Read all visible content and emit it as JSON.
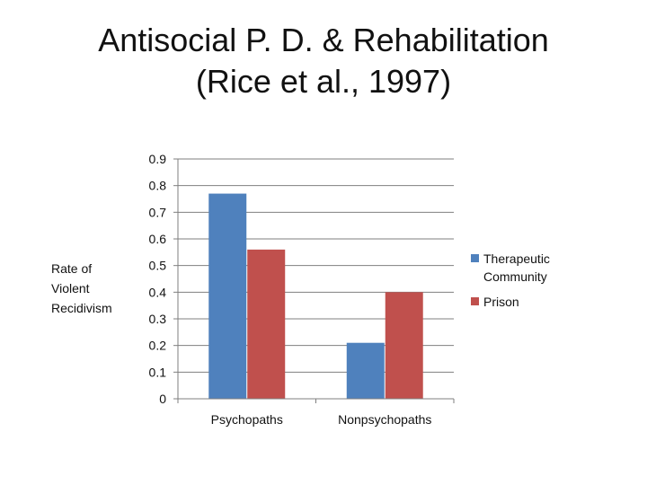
{
  "slide": {
    "title_line1": "Antisocial P. D. & Rehabilitation",
    "title_line2": "(Rice et al., 1997)"
  },
  "chart_data": {
    "type": "bar",
    "title": "",
    "xlabel": "",
    "ylabel": "Rate of\nViolent\nRecidivism",
    "categories": [
      "Psychopaths",
      "Nonpsychopaths"
    ],
    "series": [
      {
        "name": "Therapeutic Community",
        "values": [
          0.77,
          0.21
        ],
        "color": "#4F81BD"
      },
      {
        "name": "Prison",
        "values": [
          0.56,
          0.4
        ],
        "color": "#C0504D"
      }
    ],
    "ylim": [
      0,
      0.9
    ],
    "yticks": [
      "0",
      "0.1",
      "0.2",
      "0.3",
      "0.4",
      "0.5",
      "0.6",
      "0.7",
      "0.8",
      "0.9"
    ],
    "grid": true,
    "legend_position": "right"
  }
}
